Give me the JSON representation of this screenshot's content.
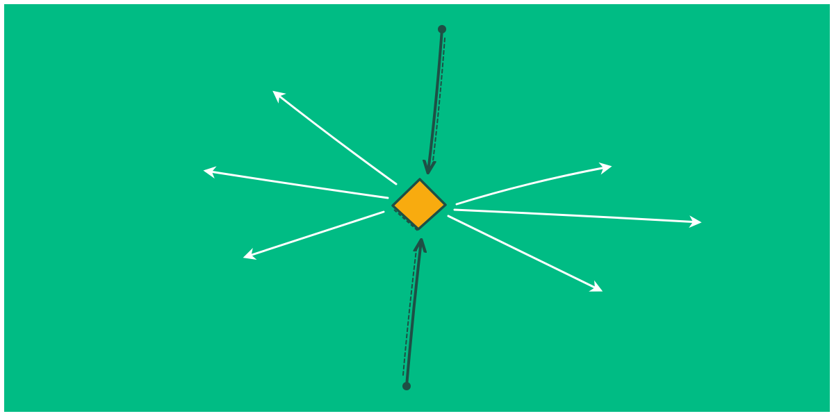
{
  "colors": {
    "background": "#00bc84",
    "node_fill": "#f8ab0f",
    "node_stroke": "#1e4f45",
    "incoming_arrow": "#1e4f45",
    "outgoing_arrow": "#ffffff"
  },
  "diagram": {
    "center_node": {
      "shape": "diamond"
    },
    "incoming_arrows": [
      {
        "name": "incoming-arrow-top",
        "from": "top"
      },
      {
        "name": "incoming-arrow-bottom",
        "from": "bottom"
      }
    ],
    "outgoing_arrows": [
      {
        "name": "outgoing-arrow-upper-left",
        "to": "upper-left"
      },
      {
        "name": "outgoing-arrow-left",
        "to": "left"
      },
      {
        "name": "outgoing-arrow-lower-left",
        "to": "lower-left"
      },
      {
        "name": "outgoing-arrow-upper-right",
        "to": "upper-right"
      },
      {
        "name": "outgoing-arrow-right",
        "to": "right"
      },
      {
        "name": "outgoing-arrow-lower-right",
        "to": "lower-right"
      }
    ]
  }
}
